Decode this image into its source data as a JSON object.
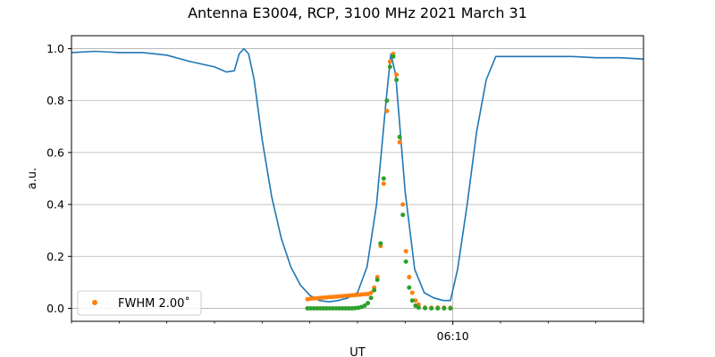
{
  "chart_data": {
    "type": "line",
    "title": "Antenna E3004, RCP, 3100 MHz 2021 March 31",
    "xlabel": "UT",
    "ylabel": "a.u.",
    "ylim": [
      -0.05,
      1.05
    ],
    "y_ticks": [
      "0.0",
      "0.2",
      "0.4",
      "0.6",
      "0.8",
      "1.0"
    ],
    "x_time_range": [
      "06:02",
      "06:14"
    ],
    "x_major_tick": {
      "time": "06:10",
      "label": "06:10"
    },
    "x_minor_ticks": [
      "06:02",
      "06:03",
      "06:04",
      "06:05",
      "06:06",
      "06:07",
      "06:08",
      "06:09",
      "06:11",
      "06:12",
      "06:13",
      "06:14"
    ],
    "grid": "horizontal at y ticks; vertical at 06:10",
    "legend": {
      "position": "lower-left",
      "label": "FWHM 2.00$^\\circ$",
      "display": "FWHM 2.00˚",
      "marker_color": "#ff7f0e"
    },
    "series": [
      {
        "kind": "line",
        "color": "#1f77b4",
        "points": [
          [
            "06:02:00",
            0.985
          ],
          [
            "06:02:30",
            0.99
          ],
          [
            "06:03:00",
            0.985
          ],
          [
            "06:03:30",
            0.985
          ],
          [
            "06:04:00",
            0.975
          ],
          [
            "06:04:30",
            0.95
          ],
          [
            "06:05:00",
            0.93
          ],
          [
            "06:05:15",
            0.91
          ],
          [
            "06:05:25",
            0.915
          ],
          [
            "06:05:31",
            0.98
          ],
          [
            "06:05:37",
            1.0
          ],
          [
            "06:05:43",
            0.98
          ],
          [
            "06:05:50",
            0.88
          ],
          [
            "06:06:00",
            0.65
          ],
          [
            "06:06:12",
            0.43
          ],
          [
            "06:06:24",
            0.27
          ],
          [
            "06:06:36",
            0.16
          ],
          [
            "06:06:48",
            0.09
          ],
          [
            "06:07:00",
            0.05
          ],
          [
            "06:07:12",
            0.03
          ],
          [
            "06:07:24",
            0.025
          ],
          [
            "06:07:36",
            0.03
          ],
          [
            "06:07:48",
            0.04
          ],
          [
            "06:08:00",
            0.06
          ],
          [
            "06:08:12",
            0.16
          ],
          [
            "06:08:24",
            0.4
          ],
          [
            "06:08:36",
            0.8
          ],
          [
            "06:08:42",
            0.98
          ],
          [
            "06:08:48",
            0.9
          ],
          [
            "06:09:00",
            0.45
          ],
          [
            "06:09:12",
            0.15
          ],
          [
            "06:09:24",
            0.06
          ],
          [
            "06:09:36",
            0.04
          ],
          [
            "06:09:48",
            0.03
          ],
          [
            "06:09:57",
            0.03
          ],
          [
            "06:10:06",
            0.15
          ],
          [
            "06:10:18",
            0.4
          ],
          [
            "06:10:30",
            0.68
          ],
          [
            "06:10:42",
            0.88
          ],
          [
            "06:10:54",
            0.97
          ],
          [
            "06:11:30",
            0.97
          ],
          [
            "06:12:00",
            0.97
          ],
          [
            "06:12:30",
            0.97
          ],
          [
            "06:13:00",
            0.965
          ],
          [
            "06:13:30",
            0.965
          ],
          [
            "06:14:00",
            0.96
          ]
        ]
      },
      {
        "kind": "scatter",
        "name": "FWHM 2.00˚",
        "color": "#ff7f0e",
        "points": [
          [
            "06:06:57",
            0.035
          ],
          [
            "06:07:01",
            0.037
          ],
          [
            "06:07:05",
            0.038
          ],
          [
            "06:07:09",
            0.039
          ],
          [
            "06:07:13",
            0.04
          ],
          [
            "06:07:17",
            0.041
          ],
          [
            "06:07:21",
            0.042
          ],
          [
            "06:07:25",
            0.043
          ],
          [
            "06:07:29",
            0.044
          ],
          [
            "06:07:33",
            0.045
          ],
          [
            "06:07:37",
            0.046
          ],
          [
            "06:07:41",
            0.047
          ],
          [
            "06:07:45",
            0.048
          ],
          [
            "06:07:49",
            0.049
          ],
          [
            "06:07:53",
            0.05
          ],
          [
            "06:07:57",
            0.051
          ],
          [
            "06:08:01",
            0.052
          ],
          [
            "06:08:05",
            0.053
          ],
          [
            "06:08:09",
            0.054
          ],
          [
            "06:08:13",
            0.055
          ],
          [
            "06:08:17",
            0.06
          ],
          [
            "06:08:21",
            0.08
          ],
          [
            "06:08:25",
            0.12
          ],
          [
            "06:08:29",
            0.24
          ],
          [
            "06:08:33",
            0.48
          ],
          [
            "06:08:37",
            0.76
          ],
          [
            "06:08:41",
            0.95
          ],
          [
            "06:08:45",
            0.98
          ],
          [
            "06:08:49",
            0.9
          ],
          [
            "06:08:53",
            0.64
          ],
          [
            "06:08:57",
            0.4
          ],
          [
            "06:09:01",
            0.22
          ],
          [
            "06:09:05",
            0.12
          ],
          [
            "06:09:09",
            0.06
          ],
          [
            "06:09:13",
            0.03
          ],
          [
            "06:09:17",
            0.015
          ],
          [
            "06:09:25",
            0.003
          ],
          [
            "06:09:33",
            0.002
          ],
          [
            "06:09:41",
            0.003
          ],
          [
            "06:09:49",
            0.003
          ],
          [
            "06:09:57",
            0.002
          ]
        ]
      },
      {
        "kind": "scatter",
        "color": "#2ca02c",
        "points": [
          [
            "06:06:57",
            0.0
          ],
          [
            "06:07:01",
            0.0
          ],
          [
            "06:07:05",
            0.0
          ],
          [
            "06:07:09",
            0.0
          ],
          [
            "06:07:13",
            0.0
          ],
          [
            "06:07:17",
            0.0
          ],
          [
            "06:07:21",
            0.0
          ],
          [
            "06:07:25",
            0.0
          ],
          [
            "06:07:29",
            0.0
          ],
          [
            "06:07:33",
            0.0
          ],
          [
            "06:07:37",
            0.0
          ],
          [
            "06:07:41",
            0.0
          ],
          [
            "06:07:45",
            0.0
          ],
          [
            "06:07:49",
            0.0
          ],
          [
            "06:07:53",
            0.0
          ],
          [
            "06:07:57",
            0.001
          ],
          [
            "06:08:01",
            0.002
          ],
          [
            "06:08:05",
            0.005
          ],
          [
            "06:08:09",
            0.01
          ],
          [
            "06:08:13",
            0.02
          ],
          [
            "06:08:17",
            0.04
          ],
          [
            "06:08:21",
            0.07
          ],
          [
            "06:08:25",
            0.11
          ],
          [
            "06:08:29",
            0.25
          ],
          [
            "06:08:33",
            0.5
          ],
          [
            "06:08:37",
            0.8
          ],
          [
            "06:08:41",
            0.93
          ],
          [
            "06:08:45",
            0.97
          ],
          [
            "06:08:49",
            0.88
          ],
          [
            "06:08:53",
            0.66
          ],
          [
            "06:08:57",
            0.36
          ],
          [
            "06:09:01",
            0.18
          ],
          [
            "06:09:05",
            0.08
          ],
          [
            "06:09:09",
            0.03
          ],
          [
            "06:09:13",
            0.01
          ],
          [
            "06:09:17",
            0.003
          ],
          [
            "06:09:25",
            0.001
          ],
          [
            "06:09:33",
            0.0
          ],
          [
            "06:09:41",
            0.0
          ],
          [
            "06:09:49",
            0.0
          ],
          [
            "06:09:57",
            0.0
          ]
        ]
      }
    ]
  }
}
